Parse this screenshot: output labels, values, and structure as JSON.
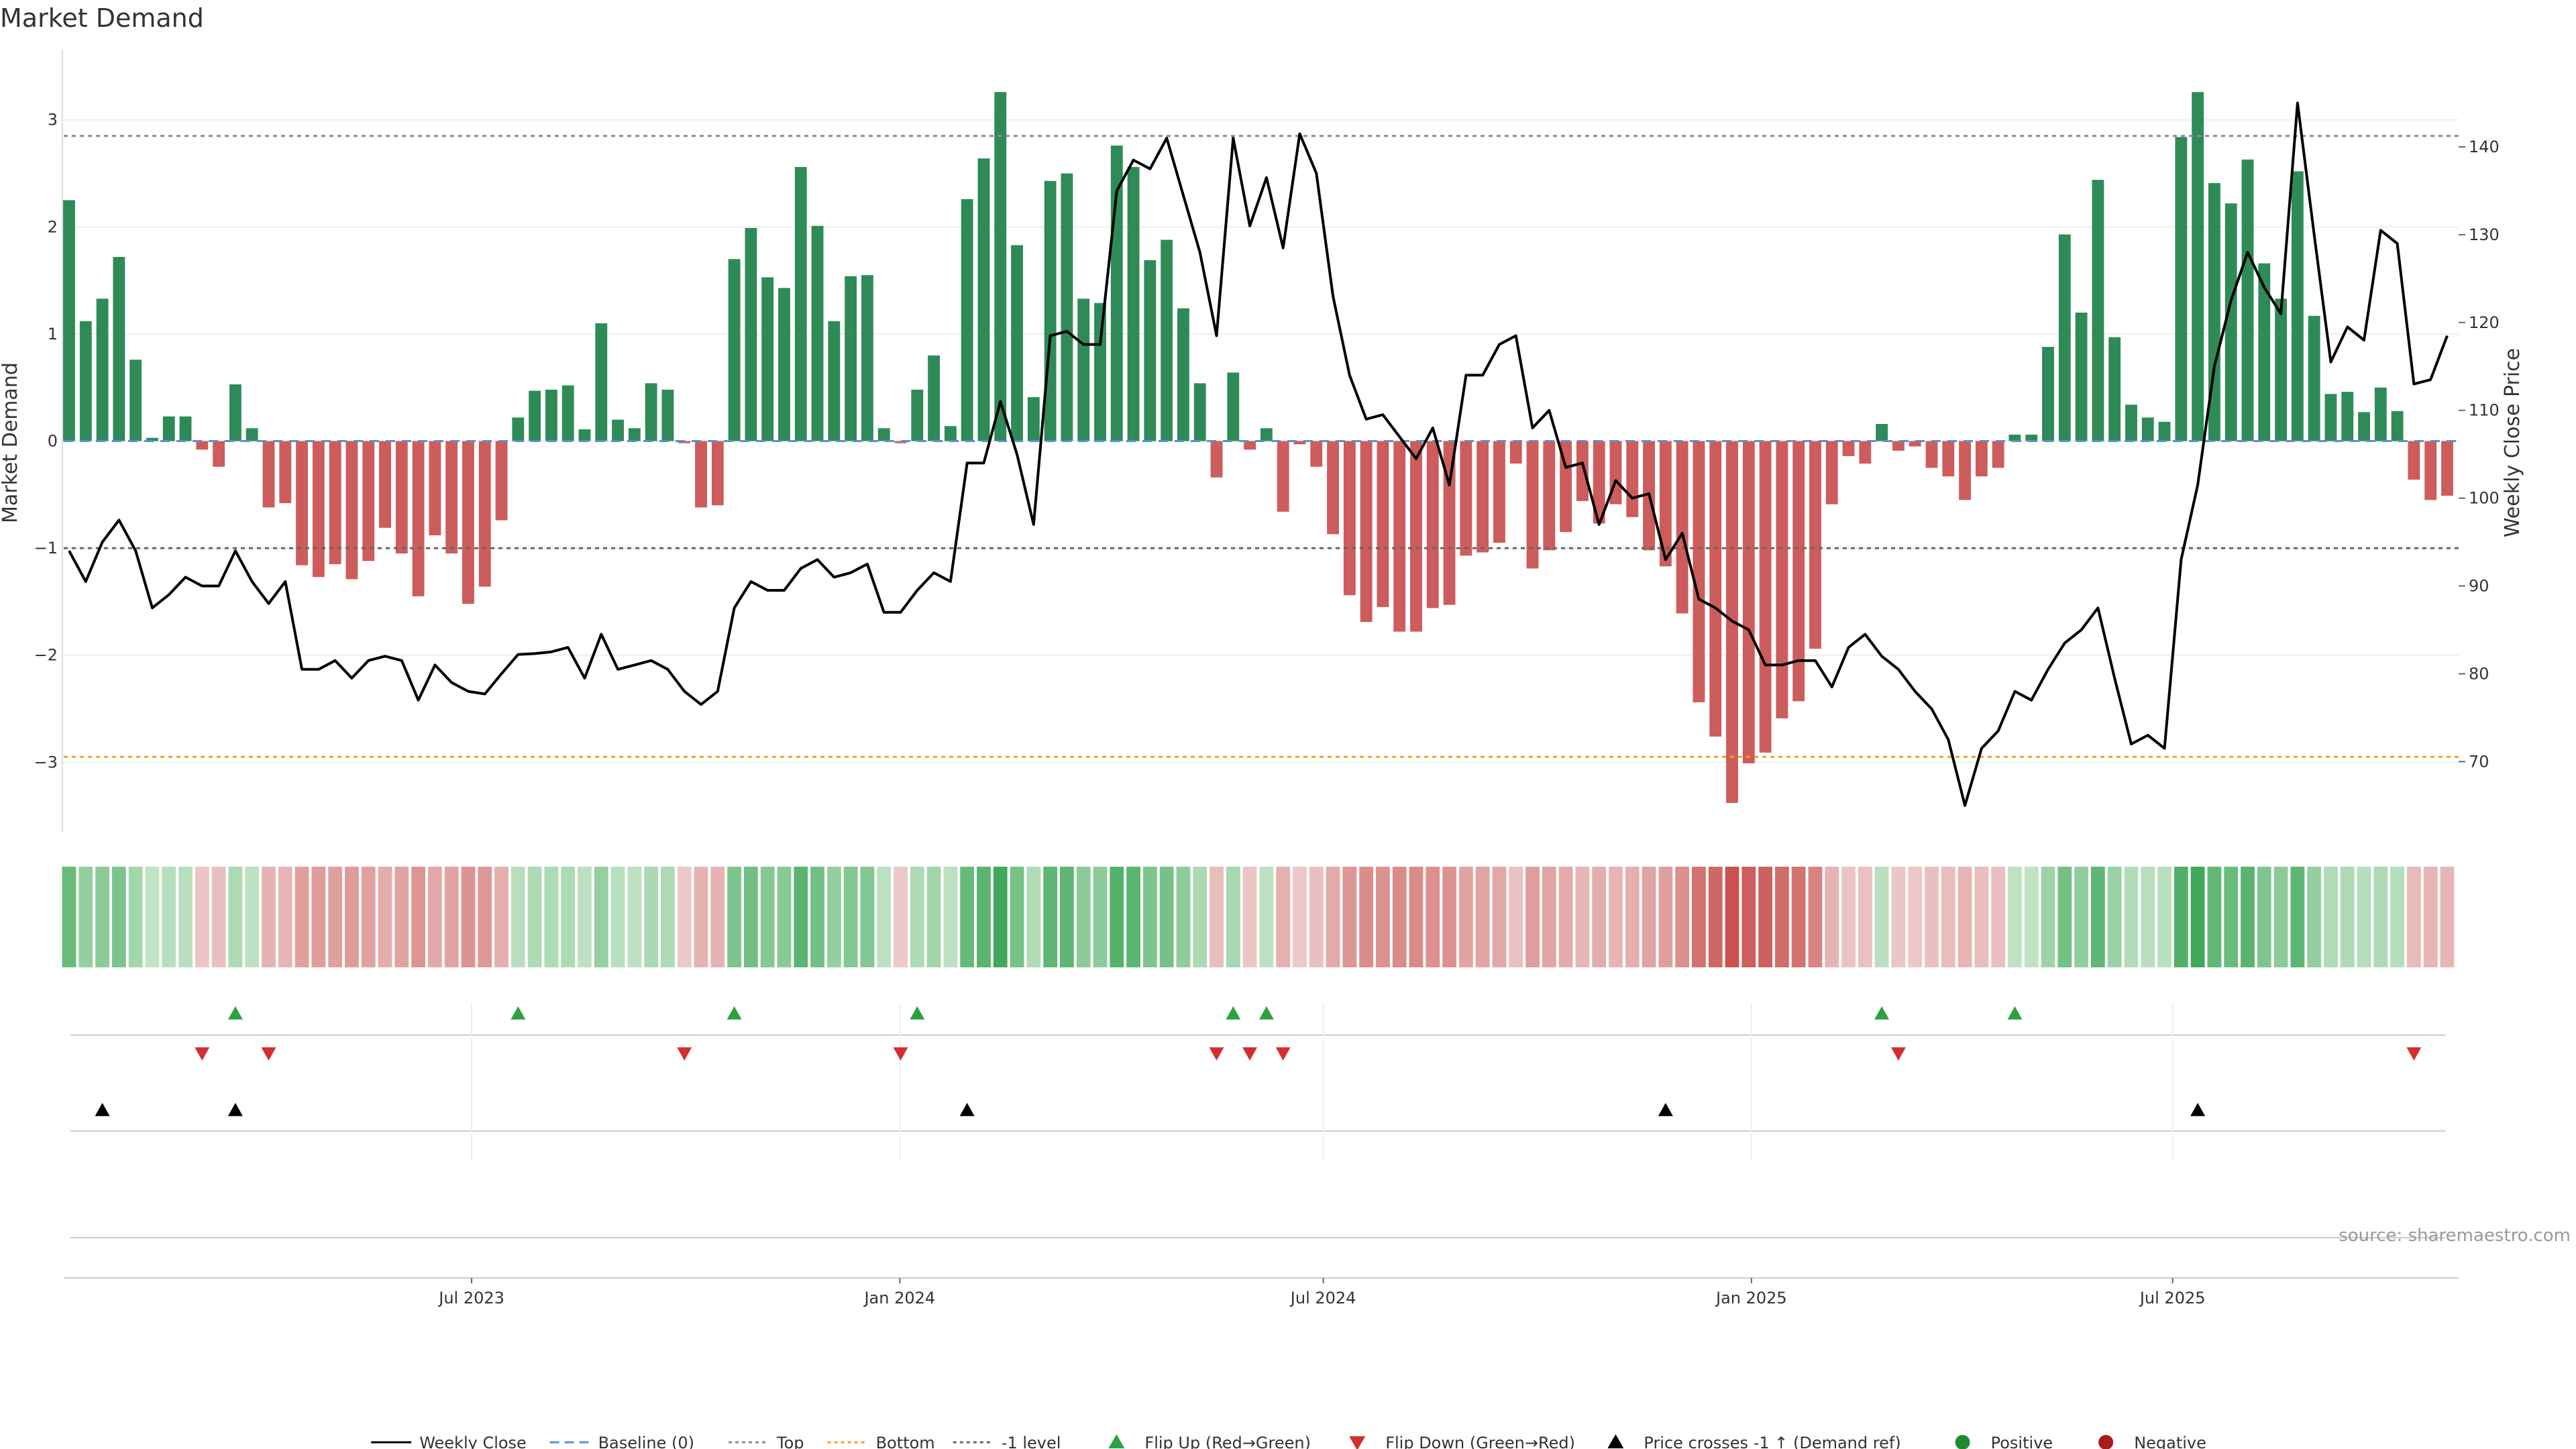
{
  "chart_data": {
    "type": "bar",
    "title": "Market Demand",
    "ylabel_left": "Market Demand",
    "ylabel_right": "Weekly Close Price",
    "left_ylim": [
      -3.65,
      3.65
    ],
    "left_ticks": [
      -3,
      -2,
      -1,
      0,
      1,
      2,
      3
    ],
    "right_ylim": [
      62,
      151
    ],
    "right_ticks": [
      70,
      80,
      90,
      100,
      110,
      120,
      130,
      140
    ],
    "top_level": 2.85,
    "bottom_level": -2.95,
    "minus1_level": -1,
    "start_date": "2023-01-09",
    "end_date": "2025-10-27",
    "x_ticks": [
      {
        "date": "2023-07-01",
        "label": "Jul 2023"
      },
      {
        "date": "2024-01-01",
        "label": "Jan 2024"
      },
      {
        "date": "2024-07-01",
        "label": "Jul 2024"
      },
      {
        "date": "2025-01-01",
        "label": "Jan 2025"
      },
      {
        "date": "2025-07-01",
        "label": "Jul 2025"
      }
    ],
    "demand": [
      2.25,
      1.12,
      1.33,
      1.72,
      0.76,
      0.03,
      0.23,
      0.23,
      -0.08,
      -0.24,
      0.53,
      0.12,
      -0.62,
      -0.58,
      -1.16,
      -1.27,
      -1.15,
      -1.29,
      -1.12,
      -0.81,
      -1.05,
      -1.45,
      -0.88,
      -1.05,
      -1.52,
      -1.36,
      -0.74,
      0.22,
      0.47,
      0.48,
      0.52,
      0.11,
      1.1,
      0.2,
      0.12,
      0.54,
      0.48,
      -0.02,
      -0.62,
      -0.6,
      1.7,
      1.99,
      1.53,
      1.43,
      2.56,
      2.01,
      1.12,
      1.54,
      1.55,
      0.12,
      -0.02,
      0.48,
      0.8,
      0.14,
      2.26,
      2.64,
      3.26,
      1.83,
      0.41,
      2.43,
      2.5,
      1.33,
      1.29,
      2.76,
      2.56,
      1.69,
      1.88,
      1.24,
      0.54,
      -0.34,
      0.64,
      -0.08,
      0.12,
      -0.66,
      -0.03,
      -0.24,
      -0.87,
      -1.44,
      -1.69,
      -1.55,
      -1.78,
      -1.78,
      -1.56,
      -1.53,
      -1.07,
      -1.04,
      -0.95,
      -0.21,
      -1.19,
      -1.02,
      -0.85,
      -0.56,
      -0.77,
      -0.59,
      -0.71,
      -1.02,
      -1.17,
      -1.61,
      -2.44,
      -2.76,
      -3.38,
      -3.01,
      -2.91,
      -2.59,
      -2.43,
      -1.94,
      -0.59,
      -0.14,
      -0.21,
      0.16,
      -0.09,
      -0.05,
      -0.25,
      -0.33,
      -0.55,
      -0.33,
      -0.25,
      0.06,
      0.06,
      0.88,
      1.93,
      1.2,
      2.44,
      0.97,
      0.34,
      0.22,
      0.18,
      2.84,
      3.26,
      2.41,
      2.22,
      2.63,
      1.66,
      1.33,
      2.52,
      1.17,
      0.44,
      0.46,
      0.27,
      0.5,
      0.28,
      -0.36,
      -0.55,
      -0.51
    ],
    "price": [
      94,
      90.5,
      95,
      97.5,
      94,
      87.5,
      89,
      91,
      90,
      90,
      94,
      90.5,
      88,
      90.5,
      80.5,
      80.5,
      81.5,
      79.5,
      81.5,
      82,
      81.5,
      77,
      81,
      79,
      78,
      77.7,
      80,
      82.2,
      82.3,
      82.5,
      83,
      79.5,
      84.5,
      80.5,
      81,
      81.5,
      80.5,
      78,
      76.5,
      78,
      87.5,
      90.5,
      89.5,
      89.5,
      92,
      93,
      91,
      91.5,
      92.5,
      87,
      87,
      89.5,
      91.5,
      90.5,
      104,
      104,
      111,
      105,
      97,
      118.5,
      119,
      117.5,
      117.5,
      135,
      138.5,
      137.5,
      141,
      134.5,
      128,
      118.5,
      141,
      131,
      136.5,
      128.5,
      141.5,
      137,
      123,
      114,
      109,
      109.5,
      107,
      104.5,
      108,
      101.5,
      114,
      114,
      117.5,
      118.5,
      108,
      110,
      103.5,
      104,
      97,
      102,
      100,
      100.5,
      93,
      96,
      88.5,
      87.5,
      86,
      85,
      81,
      81,
      81.5,
      81.5,
      78.5,
      83,
      84.5,
      82,
      80.5,
      78,
      76,
      72.5,
      65,
      71.5,
      73.5,
      78,
      77,
      80.5,
      83.5,
      85,
      87.5,
      79.5,
      72,
      73,
      71.5,
      93,
      101.5,
      115,
      122.5,
      128,
      124,
      121,
      145,
      130,
      115.5,
      119.5,
      118,
      130.5,
      129,
      113,
      113.5,
      118.5
    ],
    "heat_strip_weeks": 144,
    "flip_up_weeks": [
      10,
      27,
      40,
      51,
      70,
      72,
      109,
      117
    ],
    "flip_down_weeks": [
      8,
      12,
      37,
      50,
      69,
      71,
      73,
      110,
      141
    ],
    "price_cross_weeks": [
      2,
      10,
      54,
      96,
      128
    ],
    "colors": {
      "positive_bar": "#2e8b57",
      "negative_bar": "#cd5c5c",
      "price_line": "#000000",
      "baseline": "#5b8fd0",
      "top_line": "#8a8aa8",
      "bottom_line": "#ff9c2a",
      "minus1_line": "#666666",
      "flip_up": "#2ea043",
      "flip_down": "#d32f2f",
      "price_cross": "#000000",
      "positive_dot": "#1e8c2e",
      "negative_dot": "#a61c1c"
    },
    "legend": [
      {
        "label": "Weekly Close",
        "kind": "line-solid",
        "color": "#000000"
      },
      {
        "label": "Baseline (0)",
        "kind": "line-dash",
        "color": "#5b8fd0"
      },
      {
        "label": "Top",
        "kind": "line-dot",
        "color": "#8a8aa8"
      },
      {
        "label": "Bottom",
        "kind": "line-dot",
        "color": "#ff9c2a"
      },
      {
        "label": "-1 level",
        "kind": "line-dot",
        "color": "#666666"
      },
      {
        "label": "Flip Up (Red→Green)",
        "kind": "tri-up",
        "color": "#2ea043"
      },
      {
        "label": "Flip Down (Green→Red)",
        "kind": "tri-down",
        "color": "#d32f2f"
      },
      {
        "label": "Price crosses -1 ↑ (Demand ref)",
        "kind": "tri-up",
        "color": "#000000"
      },
      {
        "label": "Positive",
        "kind": "dot",
        "color": "#1e8c2e"
      },
      {
        "label": "Negative",
        "kind": "dot",
        "color": "#a61c1c"
      }
    ],
    "source": "source: sharemaestro.com"
  }
}
